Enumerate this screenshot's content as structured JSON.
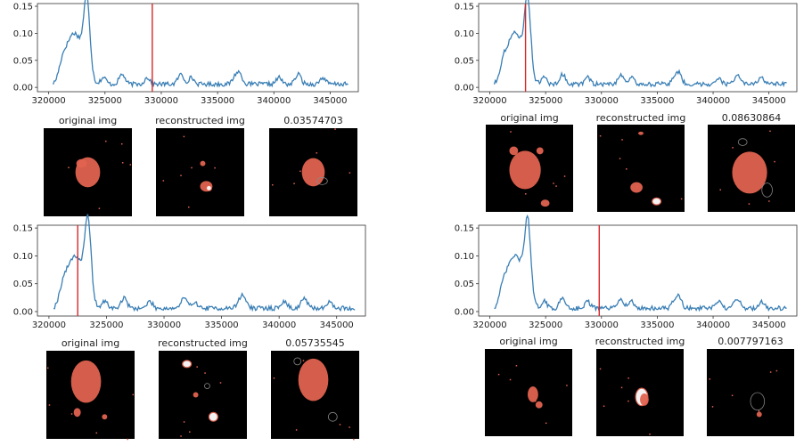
{
  "colors": {
    "line": "#3a7fb5",
    "marker": "#d62728",
    "panel_bg": "#000000",
    "blob": "#e0624f",
    "blob_hot": "#ffffff"
  },
  "chart_data": [
    {
      "type": "line",
      "xlim": [
        319000,
        347500
      ],
      "ylim": [
        -0.008,
        0.155
      ],
      "xticks": [
        320000,
        325000,
        330000,
        335000,
        340000,
        345000
      ],
      "xtick_labels": [
        "320000",
        "325000",
        "330000",
        "335000",
        "340000",
        "345000"
      ],
      "yticks": [
        0.0,
        0.05,
        0.1,
        0.15
      ],
      "ytick_labels": [
        "0.00",
        "0.05",
        "0.10",
        "0.15"
      ],
      "marker_x": 329200,
      "panel_titles": [
        "original img",
        "reconstructed img",
        "0.03574703"
      ]
    },
    {
      "type": "line",
      "xlim": [
        319000,
        347500
      ],
      "ylim": [
        -0.008,
        0.155
      ],
      "xticks": [
        320000,
        325000,
        330000,
        335000,
        340000,
        345000
      ],
      "xtick_labels": [
        "320000",
        "325000",
        "330000",
        "335000",
        "340000",
        "345000"
      ],
      "yticks": [
        0.0,
        0.05,
        0.1,
        0.15
      ],
      "ytick_labels": [
        "0.00",
        "0.05",
        "0.10",
        "0.15"
      ],
      "marker_x": 323200,
      "panel_titles": [
        "original img",
        "reconstructed img",
        "0.08630864"
      ]
    },
    {
      "type": "line",
      "xlim": [
        319000,
        347500
      ],
      "ylim": [
        -0.008,
        0.155
      ],
      "xticks": [
        320000,
        325000,
        330000,
        335000,
        340000,
        345000
      ],
      "xtick_labels": [
        "320000",
        "325000",
        "330000",
        "335000",
        "340000",
        "345000"
      ],
      "yticks": [
        0.0,
        0.05,
        0.1,
        0.15
      ],
      "ytick_labels": [
        "0.00",
        "0.05",
        "0.10",
        "0.15"
      ],
      "marker_x": 322500,
      "panel_titles": [
        "original img",
        "reconstructed img",
        "0.05735545"
      ]
    },
    {
      "type": "line",
      "xlim": [
        319000,
        347500
      ],
      "ylim": [
        -0.008,
        0.155
      ],
      "xticks": [
        320000,
        325000,
        330000,
        335000,
        340000,
        345000
      ],
      "xtick_labels": [
        "320000",
        "325000",
        "330000",
        "335000",
        "340000",
        "345000"
      ],
      "yticks": [
        0.0,
        0.05,
        0.1,
        0.15
      ],
      "ytick_labels": [
        "0.00",
        "0.05",
        "0.10",
        "0.15"
      ],
      "marker_x": 329800,
      "panel_titles": [
        "original img",
        "reconstructed img",
        "0.007797163"
      ]
    }
  ]
}
